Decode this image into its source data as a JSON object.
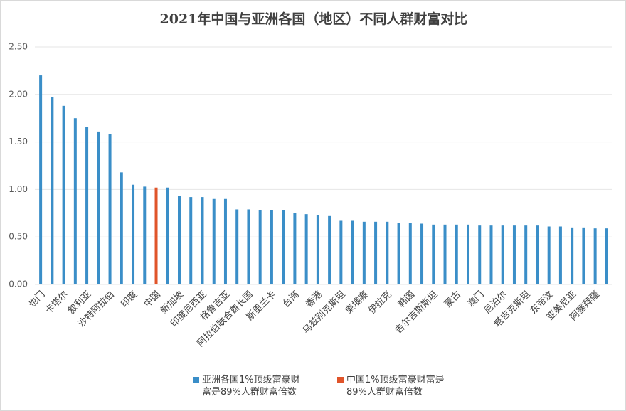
{
  "chart_data": {
    "type": "bar",
    "title": "2021年中国与亚洲各国（地区）不同人群财富对比",
    "categories": [
      "也门",
      null,
      "卡塔尔",
      null,
      "叙利亚",
      null,
      "沙特阿拉伯",
      null,
      "印度",
      null,
      "中国",
      null,
      "新加坡",
      null,
      "印度尼西亚",
      null,
      "格鲁吉亚",
      null,
      "阿拉伯联合酋长国",
      null,
      "斯里兰卡",
      null,
      "台湾",
      null,
      "香港",
      null,
      "乌兹别克斯坦",
      null,
      "柬埔寨",
      null,
      "伊拉克",
      null,
      "韩国",
      null,
      "吉尔吉斯斯坦",
      null,
      "蒙古",
      null,
      "澳门",
      null,
      "尼泊尔",
      null,
      "塔吉克斯坦",
      null,
      "东帝汶",
      null,
      "亚美尼亚",
      null,
      "阿塞拜疆",
      null
    ],
    "series": [
      {
        "name": "亚洲各国1%顶级富豪财富是89%人群财富倍数",
        "color": "#3a8ec8",
        "values": [
          2.2,
          1.97,
          1.88,
          1.75,
          1.66,
          1.61,
          1.58,
          1.18,
          1.05,
          1.03,
          null,
          1.02,
          0.93,
          0.92,
          0.92,
          0.9,
          0.9,
          0.79,
          0.79,
          0.78,
          0.78,
          0.78,
          0.75,
          0.74,
          0.73,
          0.72,
          0.67,
          0.67,
          0.66,
          0.66,
          0.66,
          0.65,
          0.65,
          0.64,
          0.63,
          0.63,
          0.63,
          0.63,
          0.62,
          0.62,
          0.62,
          0.62,
          0.62,
          0.62,
          0.61,
          0.61,
          0.6,
          0.6,
          0.59,
          0.59
        ]
      },
      {
        "name": "中国1%顶级富豪财富是89%人群财富倍数",
        "color": "#e0542a",
        "values": [
          null,
          null,
          null,
          null,
          null,
          null,
          null,
          null,
          null,
          null,
          1.02,
          null,
          null,
          null,
          null,
          null,
          null,
          null,
          null,
          null,
          null,
          null,
          null,
          null,
          null,
          null,
          null,
          null,
          null,
          null,
          null,
          null,
          null,
          null,
          null,
          null,
          null,
          null,
          null,
          null,
          null,
          null,
          null,
          null,
          null,
          null,
          null,
          null,
          null,
          null
        ]
      }
    ],
    "ylim": [
      0,
      2.5
    ],
    "yticks": [
      {
        "value": 0,
        "label": "0.00"
      },
      {
        "value": 0.5,
        "label": "0.50"
      },
      {
        "value": 1,
        "label": "1.00"
      },
      {
        "value": 1.5,
        "label": "1.50"
      },
      {
        "value": 2,
        "label": "2.00"
      },
      {
        "value": 2.5,
        "label": "2.50"
      }
    ],
    "grid": true
  }
}
